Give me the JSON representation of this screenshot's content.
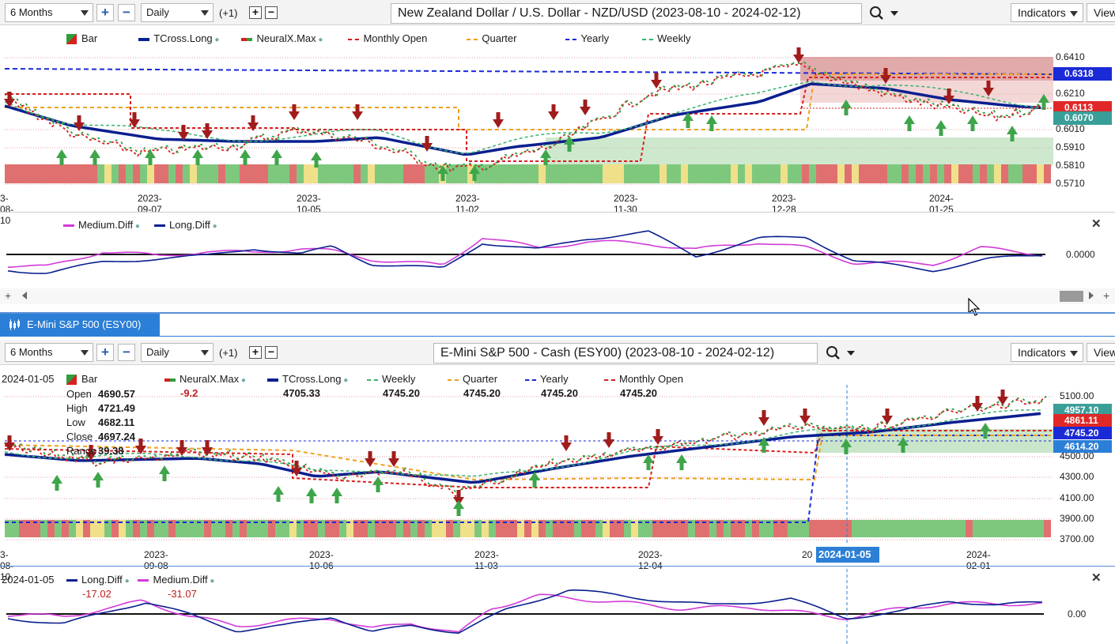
{
  "top": {
    "toolbar": {
      "range": "6 Months",
      "interval": "Daily",
      "offset": "(+1)",
      "title": "New Zealand Dollar / U.S. Dollar - NZD/USD (2023-08-10 - 2024-02-12)",
      "indicators": "Indicators",
      "view": "View"
    },
    "legend": [
      {
        "name": "Bar",
        "color": "#2e9e3e"
      },
      {
        "name": "TCross.Long",
        "color": "#0a1f8f"
      },
      {
        "name": "NeuralX.Max",
        "color": "#2e9e3e"
      },
      {
        "name": "Monthly Open",
        "color": "#d62020"
      },
      {
        "name": "Quarter",
        "color": "#f0a020"
      },
      {
        "name": "Yearly",
        "color": "#1a2ad6"
      },
      {
        "name": "Weekly",
        "color": "#3cb371"
      }
    ],
    "yticks": [
      "0.6410",
      "0.6210",
      "0.6010",
      "0.5910",
      "0.5810",
      "0.5710"
    ],
    "price_labels": [
      {
        "value": "0.6318",
        "color": "#1a2ad6"
      },
      {
        "value": "0.6113",
        "color": "#e02828"
      },
      {
        "value": "0.6070",
        "color": "#3a9e98"
      }
    ],
    "xdates": [
      "3-08-10",
      "2023-09-07",
      "2023-10-05",
      "2023-11-02",
      "2023-11-30",
      "2023-12-28",
      "2024-01-25"
    ],
    "sub_legend": [
      "Medium.Diff",
      "Long.Diff"
    ],
    "sub_ytick": "0.0000"
  },
  "bottom": {
    "tab": "E-Mini S&P 500 (ESY00)",
    "toolbar": {
      "range": "6 Months",
      "interval": "Daily",
      "offset": "(+1)",
      "title": "E-Mini S&P 500 - Cash (ESY00) (2023-08-10 - 2024-02-12)",
      "indicators": "Indicators",
      "view": "View"
    },
    "cursor_date": "2024-01-05",
    "legend": [
      {
        "name": "Bar",
        "value": ""
      },
      {
        "name": "NeuralX.Max",
        "value": "-9.2"
      },
      {
        "name": "TCross.Long",
        "value": "4705.33"
      },
      {
        "name": "Weekly",
        "value": "4745.20"
      },
      {
        "name": "Quarter",
        "value": "4745.20"
      },
      {
        "name": "Yearly",
        "value": "4745.20"
      },
      {
        "name": "Monthly Open",
        "value": "4745.20"
      }
    ],
    "ohlc": [
      {
        "label": "Open",
        "value": "4690.57"
      },
      {
        "label": "High",
        "value": "4721.49"
      },
      {
        "label": "Low",
        "value": "4682.11"
      },
      {
        "label": "Close",
        "value": "4697.24"
      },
      {
        "label": "Range",
        "value": "39.38"
      }
    ],
    "yticks": [
      "5100.00",
      "4500.00",
      "4300.00",
      "4100.00",
      "3900.00",
      "3700.00"
    ],
    "price_labels": [
      {
        "value": "4957.10",
        "color": "#3a9e98"
      },
      {
        "value": "4861.11",
        "color": "#e02828"
      },
      {
        "value": "4745.20",
        "color": "#1a2ad6"
      },
      {
        "value": "4614.20",
        "color": "#2c7fd6"
      }
    ],
    "xdates": [
      "3-08-10",
      "2023-09-08",
      "2023-10-06",
      "2023-11-03",
      "2023-12-04",
      "20",
      "2024-02-01"
    ],
    "cursor_label": "2024-01-05",
    "sub_date": "2024-01-05",
    "sub_legend": [
      {
        "name": "Long.Diff",
        "value": "-17.02"
      },
      {
        "name": "Medium.Diff",
        "value": "-31.07"
      }
    ],
    "sub_ytick": "0.00"
  }
}
